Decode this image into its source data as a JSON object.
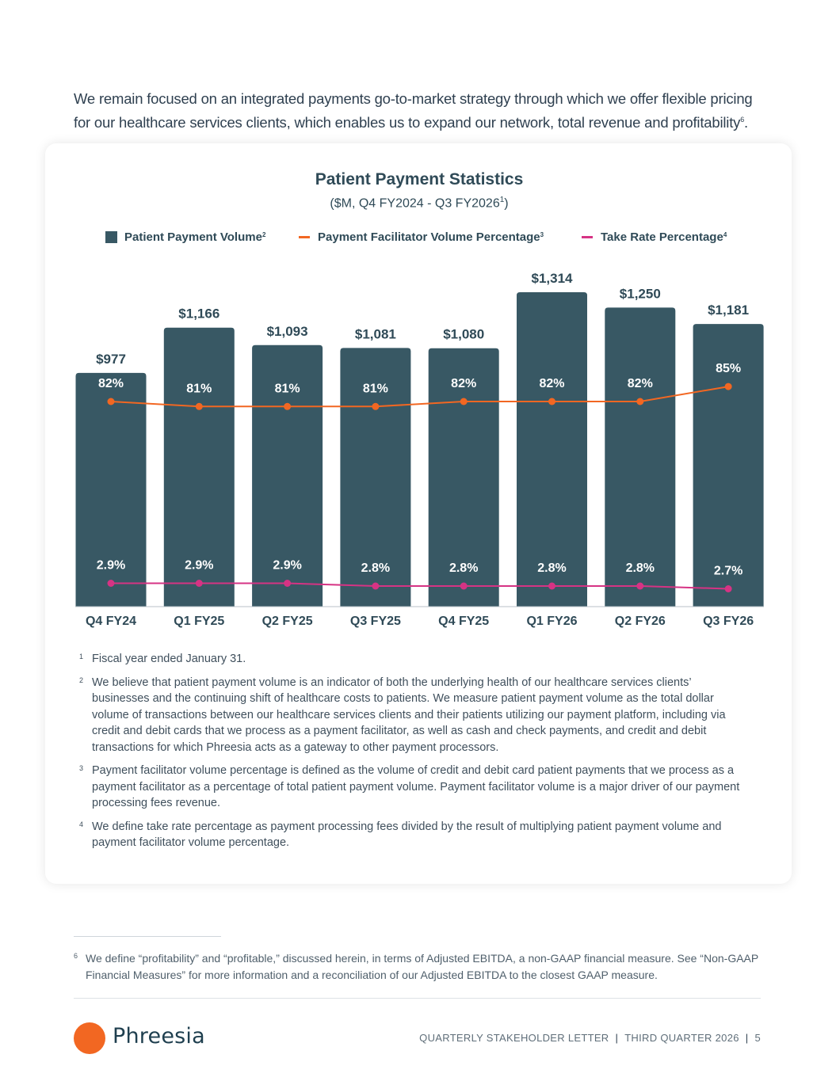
{
  "intro": {
    "text": "We remain focused on an integrated payments go-to-market strategy through which we offer flexible pricing for our healthcare services clients, which enables us to expand our network, total revenue and profitability",
    "sup": "6",
    "end": "."
  },
  "chart_data": {
    "type": "bar",
    "title": "Patient Payment Statistics",
    "subtitle": "($M, Q4 FY2024 - Q3 FY2026",
    "subtitle_sup": "1",
    "subtitle_end": ")",
    "categories": [
      "Q4 FY24",
      "Q1 FY25",
      "Q2 FY25",
      "Q3 FY25",
      "Q4 FY25",
      "Q1 FY26",
      "Q2 FY26",
      "Q3 FY26"
    ],
    "series": [
      {
        "name": "Patient Payment Volume",
        "sup": "2",
        "kind": "bar",
        "color": "#385864",
        "values": [
          977,
          1166,
          1093,
          1081,
          1080,
          1314,
          1250,
          1181
        ],
        "labels": [
          "$977",
          "$1,166",
          "$1,093",
          "$1,081",
          "$1,080",
          "$1,314",
          "$1,250",
          "$1,181"
        ]
      },
      {
        "name": "Payment Facilitator Volume Percentage",
        "sup": "3",
        "kind": "line",
        "color": "#f26722",
        "values": [
          82,
          81,
          81,
          81,
          82,
          82,
          82,
          85
        ],
        "labels": [
          "82%",
          "81%",
          "81%",
          "81%",
          "82%",
          "82%",
          "82%",
          "85%"
        ]
      },
      {
        "name": "Take Rate Percentage",
        "sup": "4",
        "kind": "line",
        "color": "#d63384",
        "values": [
          2.9,
          2.9,
          2.9,
          2.8,
          2.8,
          2.8,
          2.8,
          2.7
        ],
        "labels": [
          "2.9%",
          "2.9%",
          "2.9%",
          "2.8%",
          "2.8%",
          "2.8%",
          "2.8%",
          "2.7%"
        ]
      }
    ],
    "legend_position": "top",
    "grid": false
  },
  "footnotes": [
    {
      "num": "1",
      "text": "Fiscal year ended January 31."
    },
    {
      "num": "2",
      "text": "We believe that patient payment volume is an indicator of both the underlying health of our healthcare services clients’ businesses and the continuing shift of healthcare costs to patients. We measure patient payment volume as the total dollar volume of transactions between our healthcare services clients and their patients utilizing our payment platform, including via credit and debit cards that we process as a payment facilitator, as well as cash and check payments, and credit and debit transactions for which Phreesia acts as a gateway to other payment processors."
    },
    {
      "num": "3",
      "text": "Payment facilitator volume percentage is defined as the volume of credit and debit card patient payments that we process as a payment facilitator as a percentage of total patient payment volume. Payment facilitator volume is a major driver of our payment processing fees revenue."
    },
    {
      "num": "4",
      "text": "We define take rate percentage as payment processing fees divided by the result of multiplying patient payment volume and payment facilitator volume percentage."
    }
  ],
  "footnote6": {
    "num": "6",
    "text": "We define “profitability” and “profitable,” discussed herein, in terms of Adjusted EBITDA, a non-GAAP financial measure. See “Non-GAAP Financial Measures” for more information and a reconciliation of our Adjusted EBITDA to the closest GAAP measure."
  },
  "footer": {
    "brand": "Phreesia",
    "doc": "QUARTERLY STAKEHOLDER LETTER",
    "period": "THIRD QUARTER 2026",
    "page": "5"
  },
  "colors": {
    "accent": "#f26722",
    "bar": "#385864",
    "take_rate": "#d63384"
  }
}
